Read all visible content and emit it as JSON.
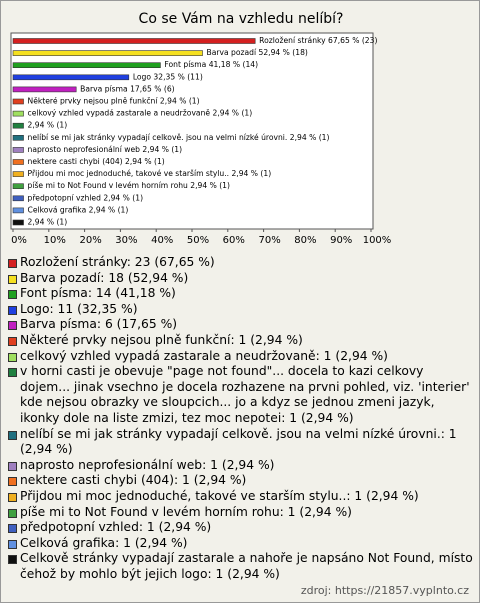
{
  "chart_data": {
    "type": "barh",
    "title": "Co se Vám na vzhledu nelíbí?",
    "values": [
      67.65,
      52.94,
      41.18,
      32.35,
      17.65,
      2.94,
      2.94,
      2.94,
      2.94,
      2.94,
      2.94,
      2.94,
      2.94,
      2.94,
      2.94,
      2.94
    ],
    "value_labels": [
      "Rozložení stránky 67,65 % (23)",
      "Barva pozadí 52,94 % (18)",
      "Font písma 41,18 % (14)",
      "Logo 32,35 % (11)",
      "Barva písma 17,65 % (6)",
      "Některé prvky nejsou plně funkční 2,94 % (1)",
      "celkový vzhled vypadá zastarale a neudržovaně 2,94 % (1)",
      "2,94 % (1)",
      "nelíbí se mi jak stránky vypadají celkově. jsou na velmi nízké úrovni. 2,94 % (1)",
      "naprosto neprofesionální web 2,94 % (1)",
      "nektere casti chybi (404) 2,94 % (1)",
      "Přijdou mi moc jednoduché, takové ve starším stylu.. 2,94 % (1)",
      "píše mi to Not Found v levém horním rohu 2,94 % (1)",
      "předpotopní vzhled 2,94 % (1)",
      "Celková grafika 2,94 % (1)",
      "2,94 % (1)"
    ],
    "colors": [
      "#d42020",
      "#f5e020",
      "#20a020",
      "#2040e0",
      "#c020c0",
      "#e04020",
      "#a0e060",
      "#208040",
      "#207080",
      "#a080c0",
      "#f07020",
      "#f0b020",
      "#40a040",
      "#4060c0",
      "#6090e0",
      "#101010"
    ],
    "legend": [
      "Rozložení stránky: 23 (67,65 %)",
      "Barva pozadí: 18 (52,94 %)",
      "Font písma: 14 (41,18 %)",
      "Logo: 11 (32,35 %)",
      "Barva písma: 6 (17,65 %)",
      "Některé prvky nejsou plně funkční: 1 (2,94 %)",
      "celkový vzhled vypadá zastarale a neudržovaně: 1 (2,94 %)",
      "v horni casti je obevuje \"page not found\"... docela to kazi celkovy dojem... jinak vsechno je docela rozhazene na prvni pohled, viz. 'interier' kde nejsou obrazky ve sloupcich... jo a kdyz se jednou zmeni jazyk, ikonky dole na liste zmizi, tez moc nepotei: 1 (2,94 %)",
      "nelíbí se mi jak stránky vypadají celkově. jsou na velmi nízké úrovni.: 1 (2,94 %)",
      "naprosto neprofesionální web: 1 (2,94 %)",
      "nektere casti chybi (404): 1 (2,94 %)",
      "Přijdou mi moc jednoduché, takové ve starším stylu..: 1 (2,94 %)",
      "píše mi to Not Found v levém horním rohu: 1 (2,94 %)",
      "předpotopní vzhled: 1 (2,94 %)",
      "Celková grafika: 1 (2,94 %)",
      "Celkově stránky vypadají zastarale a nahoře je napsáno Not Found, místo čehož by mohlo být jejich logo: 1 (2,94 %)"
    ],
    "xlim": [
      0,
      100
    ],
    "xticks": [
      {
        "value": 0,
        "label": "0%"
      },
      {
        "value": 10,
        "label": "10%"
      },
      {
        "value": 20,
        "label": "20%"
      },
      {
        "value": 30,
        "label": "30%"
      },
      {
        "value": 40,
        "label": "40%"
      },
      {
        "value": 50,
        "label": "50%"
      },
      {
        "value": 60,
        "label": "60%"
      },
      {
        "value": 70,
        "label": "70%"
      },
      {
        "value": 80,
        "label": "80%"
      },
      {
        "value": 90,
        "label": "90%"
      },
      {
        "value": 100,
        "label": "100%"
      }
    ],
    "source": "zdroj: https://21857.vyplnto.cz"
  }
}
